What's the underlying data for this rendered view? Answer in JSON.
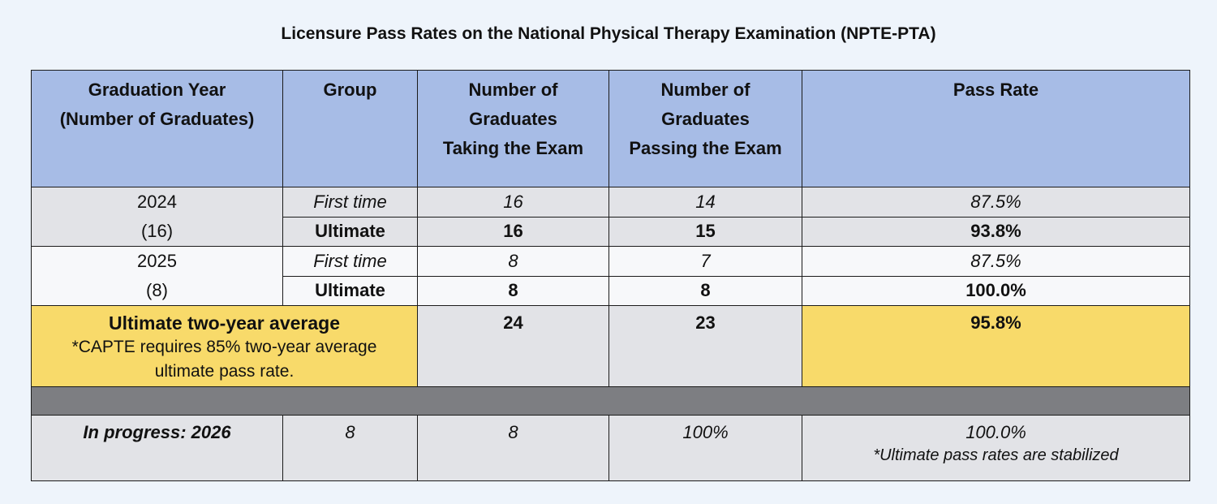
{
  "title": "Licensure Pass Rates on the National Physical Therapy Examination (NPTE-PTA)",
  "headers": {
    "year": [
      "Graduation Year",
      "(Number of Graduates)"
    ],
    "group": "Group",
    "taking": [
      "Number of",
      "Graduates",
      "Taking the Exam"
    ],
    "passing": [
      "Number of",
      "Graduates",
      "Passing the Exam"
    ],
    "rate": "Pass Rate"
  },
  "rows": [
    {
      "year": "2024",
      "count": "(16)",
      "first": {
        "group": "First time",
        "taking": "16",
        "passing": "14",
        "rate": "87.5%"
      },
      "ultimate": {
        "group": "Ultimate",
        "taking": "16",
        "passing": "15",
        "rate": "93.8%"
      }
    },
    {
      "year": "2025",
      "count": "(8)",
      "first": {
        "group": "First time",
        "taking": "8",
        "passing": "7",
        "rate": "87.5%"
      },
      "ultimate": {
        "group": "Ultimate",
        "taking": "8",
        "passing": "8",
        "rate": "100.0%"
      }
    }
  ],
  "average": {
    "label": "Ultimate two-year average",
    "note_line1": "*CAPTE requires 85% two-year average",
    "note_line2": "ultimate pass rate.",
    "taking": "24",
    "passing": "23",
    "rate": "95.8%"
  },
  "progress": {
    "label": "In progress: 2026",
    "group": "8",
    "taking": "8",
    "passing": "100%",
    "rate": "100.0%",
    "note": "*Ultimate pass rates are stabilized"
  },
  "colors": {
    "header": "#a7bce6",
    "gray_row": "#e2e3e7",
    "highlight": "#f8da6a",
    "band": "#7d7e82"
  }
}
